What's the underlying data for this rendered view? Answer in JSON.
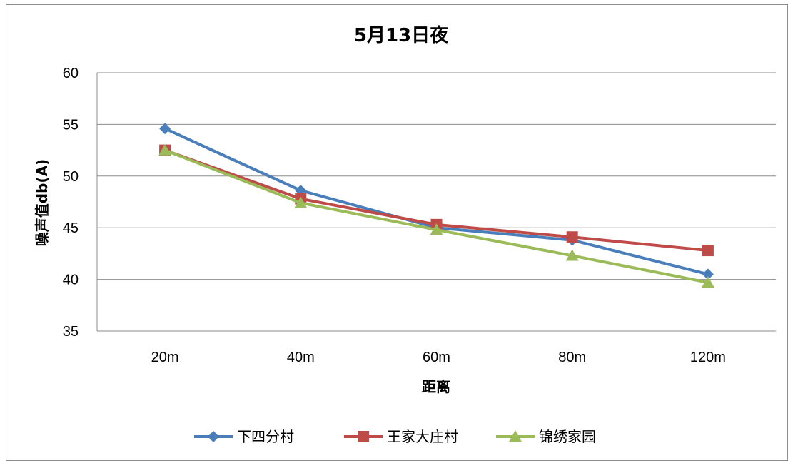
{
  "chart_data": {
    "type": "line",
    "title": "5月13日夜",
    "xlabel": "距离",
    "ylabel": "噪声值db(A)",
    "categories": [
      "20m",
      "40m",
      "60m",
      "80m",
      "120m"
    ],
    "ylim": [
      35,
      60
    ],
    "yticks": [
      35,
      40,
      45,
      50,
      55,
      60
    ],
    "grid": true,
    "legend": "bottom",
    "series": [
      {
        "name": "下四分村",
        "color": "#4a7ebb",
        "marker": "diamond",
        "values": [
          54.6,
          48.6,
          45.0,
          43.8,
          40.5
        ]
      },
      {
        "name": "王家大庄村",
        "color": "#be4b48",
        "marker": "square",
        "values": [
          52.5,
          47.8,
          45.3,
          44.1,
          42.8
        ]
      },
      {
        "name": "锦绣家园",
        "color": "#9bbb59",
        "marker": "triangle",
        "values": [
          52.5,
          47.4,
          44.8,
          42.3,
          39.7
        ]
      }
    ]
  }
}
